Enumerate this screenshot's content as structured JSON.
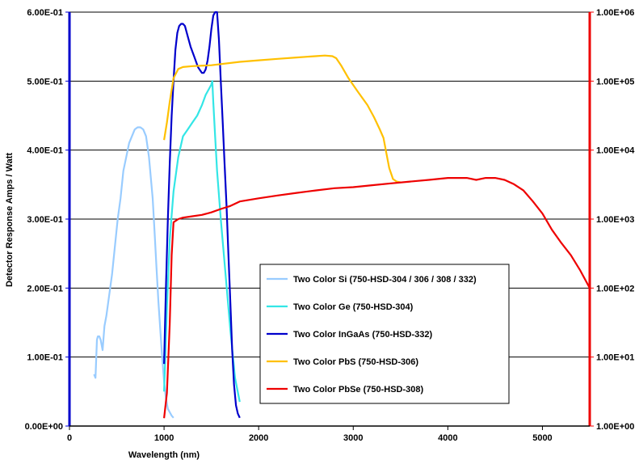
{
  "chart_data": {
    "type": "line",
    "title": "",
    "xlabel": "Wavelength (nm)",
    "ylabel": "Detector Response Amps / Watt",
    "xlim": [
      0,
      5500
    ],
    "ylim_left": [
      0,
      0.6
    ],
    "ylim_right": [
      1,
      1000000
    ],
    "right_axis_scale": "log",
    "x_ticks": [
      "0",
      "1000",
      "2000",
      "3000",
      "4000",
      "5000"
    ],
    "x_tick_values": [
      0,
      1000,
      2000,
      3000,
      4000,
      5000
    ],
    "y_left_ticks": [
      "0.00E+00",
      "1.00E-01",
      "2.00E-01",
      "3.00E-01",
      "4.00E-01",
      "5.00E-01",
      "6.00E-01"
    ],
    "y_left_tick_values": [
      0,
      0.1,
      0.2,
      0.3,
      0.4,
      0.5,
      0.6
    ],
    "y_right_ticks": [
      "1.00E+00",
      "1.00E+01",
      "1.00E+02",
      "1.00E+03",
      "1.00E+04",
      "1.00E+05",
      "1.00E+06"
    ],
    "y_right_tick_values": [
      1,
      10,
      100,
      1000,
      10000,
      100000,
      1000000
    ],
    "grid": "horizontal",
    "legend_position": "lower-right inside plot",
    "colors": {
      "left_axis": "#0000cc",
      "right_axis": "#ee0000",
      "grid": "#000000"
    },
    "series": [
      {
        "name": "Two Color Si (750-HSD-304 / 306 / 308 / 332)",
        "color": "#99ccff",
        "axis": "left",
        "x": [
          260,
          275,
          290,
          300,
          315,
          330,
          350,
          370,
          390,
          420,
          450,
          480,
          510,
          540,
          570,
          600,
          630,
          660,
          690,
          720,
          750,
          780,
          810,
          840,
          860,
          880,
          900,
          920,
          940,
          960,
          980,
          1000,
          1020,
          1040,
          1060,
          1080,
          1100
        ],
        "y": [
          0.075,
          0.07,
          0.125,
          0.13,
          0.13,
          0.125,
          0.11,
          0.145,
          0.16,
          0.19,
          0.22,
          0.26,
          0.3,
          0.33,
          0.37,
          0.39,
          0.41,
          0.42,
          0.43,
          0.433,
          0.433,
          0.43,
          0.42,
          0.39,
          0.36,
          0.33,
          0.28,
          0.23,
          0.18,
          0.14,
          0.1,
          0.065,
          0.04,
          0.025,
          0.02,
          0.015,
          0.012
        ]
      },
      {
        "name": "Two Color Ge (750-HSD-304)",
        "color": "#33e6e6",
        "axis": "left",
        "x": [
          1000,
          1010,
          1030,
          1060,
          1100,
          1150,
          1200,
          1250,
          1300,
          1350,
          1400,
          1440,
          1480,
          1500,
          1510,
          1520,
          1540,
          1560,
          1600,
          1650,
          1700,
          1750,
          1800
        ],
        "y": [
          0.05,
          0.09,
          0.17,
          0.27,
          0.34,
          0.39,
          0.42,
          0.43,
          0.44,
          0.45,
          0.465,
          0.48,
          0.49,
          0.495,
          0.5,
          0.47,
          0.42,
          0.37,
          0.3,
          0.22,
          0.14,
          0.07,
          0.035
        ]
      },
      {
        "name": "Two Color InGaAs (750-HSD-332)",
        "color": "#0000cc",
        "axis": "left",
        "x": [
          1000,
          1020,
          1040,
          1060,
          1080,
          1100,
          1120,
          1140,
          1160,
          1180,
          1200,
          1220,
          1250,
          1280,
          1320,
          1360,
          1400,
          1420,
          1440,
          1460,
          1480,
          1500,
          1520,
          1540,
          1550,
          1560,
          1580,
          1600,
          1620,
          1640,
          1660,
          1680,
          1700,
          1720,
          1740,
          1760,
          1780,
          1800
        ],
        "y": [
          0.09,
          0.2,
          0.3,
          0.38,
          0.45,
          0.5,
          0.545,
          0.57,
          0.58,
          0.583,
          0.583,
          0.58,
          0.565,
          0.55,
          0.535,
          0.52,
          0.512,
          0.512,
          0.517,
          0.53,
          0.55,
          0.575,
          0.595,
          0.6,
          0.6,
          0.6,
          0.56,
          0.5,
          0.44,
          0.38,
          0.32,
          0.25,
          0.18,
          0.11,
          0.06,
          0.03,
          0.018,
          0.012
        ]
      },
      {
        "name": "Two Color PbS (750-HSD-306)",
        "color": "#ffc000",
        "axis": "right",
        "x": [
          1000,
          1030,
          1060,
          1100,
          1150,
          1200,
          1300,
          1500,
          1800,
          2000,
          2200,
          2400,
          2600,
          2700,
          2780,
          2820,
          2870,
          2950,
          3050,
          3150,
          3220,
          3280,
          3320,
          3350,
          3380,
          3420,
          3460,
          3500
        ],
        "y": [
          14000,
          25000,
          50000,
          110000,
          150000,
          160000,
          165000,
          170000,
          190000,
          200000,
          210000,
          220000,
          230000,
          235000,
          230000,
          215000,
          170000,
          110000,
          70000,
          45000,
          30000,
          20000,
          15000,
          9000,
          5500,
          3800,
          3500,
          3400
        ]
      },
      {
        "name": "Two Color PbSe (750-HSD-308)",
        "color": "#ee0000",
        "axis": "right",
        "x": [
          1000,
          1030,
          1060,
          1080,
          1100,
          1150,
          1200,
          1300,
          1400,
          1500,
          1600,
          1700,
          1800,
          2000,
          2200,
          2400,
          2600,
          2800,
          3000,
          3200,
          3400,
          3600,
          3800,
          4000,
          4200,
          4300,
          4400,
          4500,
          4600,
          4700,
          4800,
          4900,
          5000,
          5100,
          5200,
          5300,
          5400,
          5500
        ],
        "y": [
          1.3,
          3,
          30,
          300,
          900,
          1000,
          1050,
          1100,
          1150,
          1250,
          1400,
          1550,
          1800,
          2000,
          2200,
          2400,
          2600,
          2800,
          2900,
          3100,
          3300,
          3500,
          3700,
          3950,
          3950,
          3700,
          3950,
          3950,
          3700,
          3200,
          2600,
          1800,
          1200,
          700,
          450,
          300,
          180,
          100
        ]
      }
    ]
  }
}
